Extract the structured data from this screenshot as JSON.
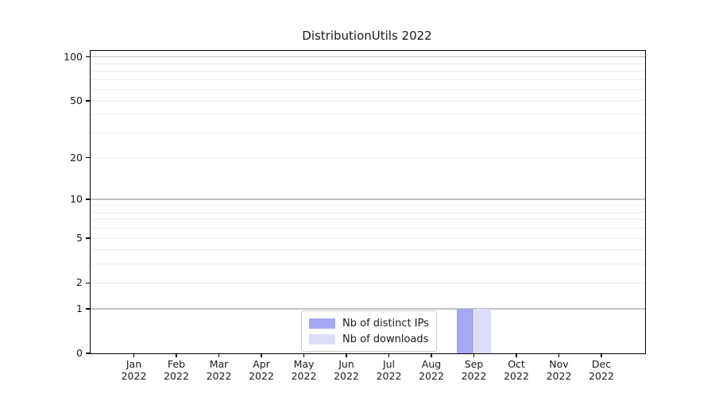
{
  "page": {
    "title": "DistributionUtils 2022"
  },
  "chart_data": {
    "type": "bar",
    "title": "DistributionUtils 2022",
    "x_tick_months": [
      "Jan",
      "Feb",
      "Mar",
      "Apr",
      "May",
      "Jun",
      "Jul",
      "Aug",
      "Sep",
      "Oct",
      "Nov",
      "Dec"
    ],
    "x_tick_year": "2022",
    "series": [
      {
        "name": "Nb of distinct IPs",
        "color": "#a6a8f3",
        "values": [
          0,
          0,
          0,
          0,
          0,
          0,
          0,
          0,
          1,
          0,
          0,
          0
        ]
      },
      {
        "name": "Nb of downloads",
        "color": "#dcdef9",
        "values": [
          0,
          0,
          0,
          0,
          0,
          0,
          0,
          0,
          1,
          0,
          0,
          0
        ]
      }
    ],
    "yscale": "log1p",
    "ylim": [
      0,
      110
    ],
    "y_tick_labels": [
      "0",
      "1",
      "2",
      "5",
      "10",
      "20",
      "50",
      "100"
    ],
    "y_tick_values": [
      0,
      1,
      2,
      5,
      10,
      20,
      50,
      100
    ],
    "y_major_gridlines": [
      1,
      10,
      100
    ],
    "y_minor_gridlines": [
      2,
      3,
      4,
      5,
      6,
      7,
      8,
      9,
      20,
      30,
      40,
      50,
      60,
      70,
      80,
      90
    ],
    "grid": "horizontal-only",
    "legend": {
      "position": "lower center"
    },
    "colors": {
      "major_grid": "#c2c2c2",
      "minor_grid": "#ececec",
      "spine": "#000000",
      "text": "#1a1a1a"
    }
  }
}
